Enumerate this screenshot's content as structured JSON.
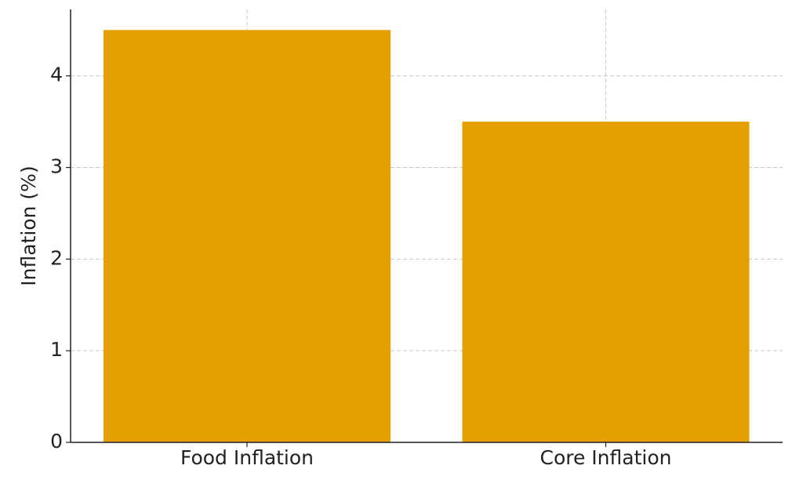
{
  "chart_data": {
    "type": "bar",
    "y_label": "Inflation (%)",
    "categories": [
      "Food Inflation",
      "Core Inflation"
    ],
    "values": [
      4.5,
      3.5
    ],
    "color": "#e69f00",
    "ylim": [
      0,
      4.725
    ],
    "yticks": [
      0,
      1,
      2,
      3,
      4
    ],
    "grid": true
  }
}
